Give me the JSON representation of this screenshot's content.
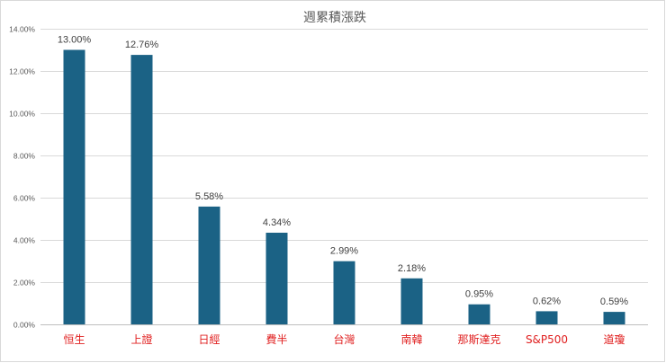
{
  "chart_data": {
    "type": "bar",
    "title": "週累積漲跌",
    "xlabel": "",
    "ylabel": "",
    "categories": [
      "恒生",
      "上證",
      "日經",
      "費半",
      "台灣",
      "南韓",
      "那斯達克",
      "S&P500",
      "道瓊"
    ],
    "values": [
      13.0,
      12.76,
      5.58,
      4.34,
      2.99,
      2.18,
      0.95,
      0.62,
      0.59
    ],
    "data_labels": [
      "13.00%",
      "12.76%",
      "5.58%",
      "4.34%",
      "2.99%",
      "2.18%",
      "0.95%",
      "0.62%",
      "0.59%"
    ],
    "ylim": [
      0,
      14
    ],
    "yticks": [
      0,
      2,
      4,
      6,
      8,
      10,
      12,
      14
    ],
    "ytick_labels": [
      "0.00%",
      "2.00%",
      "4.00%",
      "6.00%",
      "8.00%",
      "10.00%",
      "12.00%",
      "14.00%"
    ],
    "grid": true,
    "legend": "none",
    "bar_color": "#1b6285",
    "category_label_color": "#e02020"
  }
}
